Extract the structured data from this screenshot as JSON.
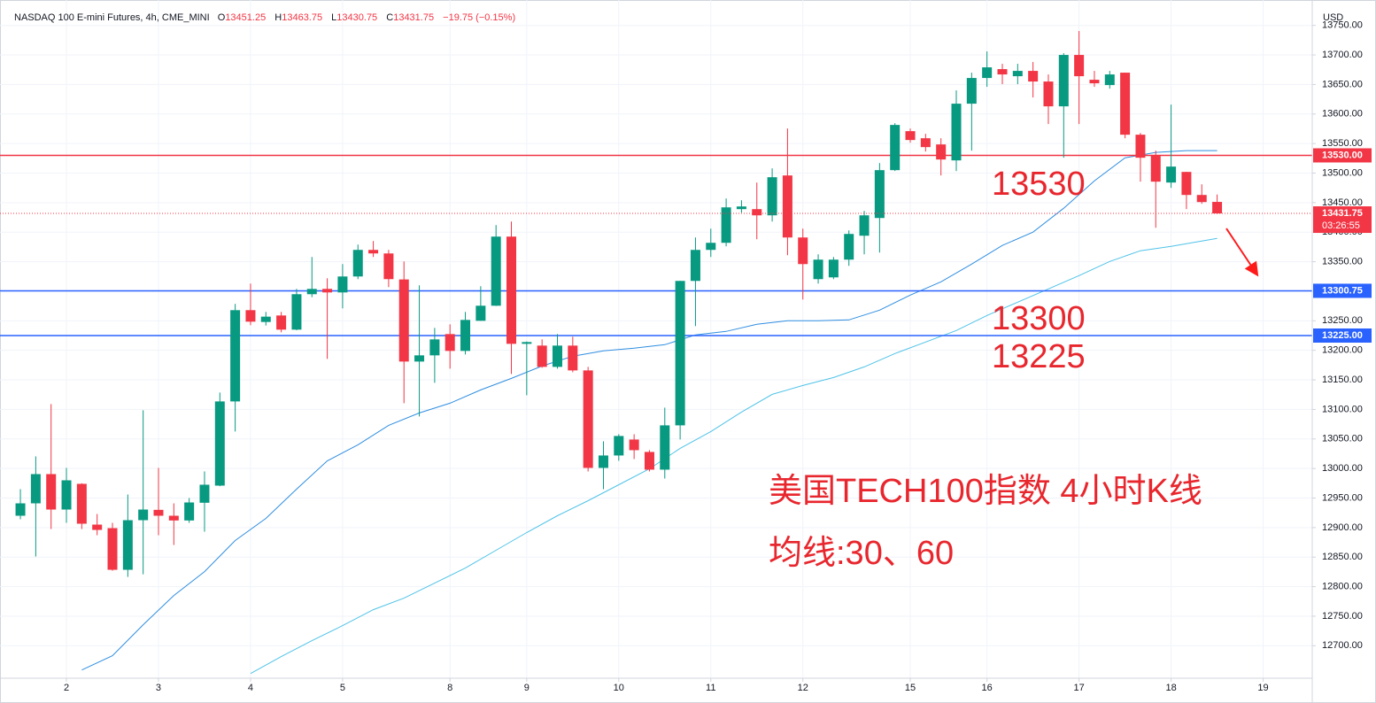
{
  "chart_data": {
    "type": "candlestick",
    "header": {
      "symbol": "NASDAQ 100 E-mini Futures, 4h, CME_MINI",
      "fields": [
        {
          "key": "O",
          "value": 13451.25
        },
        {
          "key": "H",
          "value": 13463.75
        },
        {
          "key": "L",
          "value": 13430.75
        },
        {
          "key": "C",
          "value": 13431.75
        }
      ],
      "change": "−19.75 (−0.15%)"
    },
    "currency": "USD",
    "up_color": "#089981",
    "down_color": "#f23645",
    "grid": true,
    "xlim": [
      -1.33,
      84.2
    ],
    "xticks": [
      {
        "value": 3,
        "label": "2"
      },
      {
        "value": 9,
        "label": "3"
      },
      {
        "value": 15,
        "label": "4"
      },
      {
        "value": 21,
        "label": "5"
      },
      {
        "value": 28,
        "label": "8"
      },
      {
        "value": 33,
        "label": "9"
      },
      {
        "value": 39,
        "label": "10"
      },
      {
        "value": 45,
        "label": "11"
      },
      {
        "value": 51,
        "label": "12"
      },
      {
        "value": 58,
        "label": "15"
      },
      {
        "value": 63,
        "label": "16"
      },
      {
        "value": 69,
        "label": "17"
      },
      {
        "value": 75,
        "label": "18"
      },
      {
        "value": 81,
        "label": "19"
      }
    ],
    "ylim": [
      12645,
      13793
    ],
    "yticks": [
      {
        "value": 12700,
        "label": "12700.00"
      },
      {
        "value": 12750,
        "label": "12750.00"
      },
      {
        "value": 12800,
        "label": "12800.00"
      },
      {
        "value": 12850,
        "label": "12850.00"
      },
      {
        "value": 12900,
        "label": "12900.00"
      },
      {
        "value": 12950,
        "label": "12950.00"
      },
      {
        "value": 13000,
        "label": "13000.00"
      },
      {
        "value": 13050,
        "label": "13050.00"
      },
      {
        "value": 13100,
        "label": "13100.00"
      },
      {
        "value": 13150,
        "label": "13150.00"
      },
      {
        "value": 13200,
        "label": "13200.00"
      },
      {
        "value": 13250,
        "label": "13250.00"
      },
      {
        "value": 13300,
        "label": "13300.00"
      },
      {
        "value": 13350,
        "label": "13350.00"
      },
      {
        "value": 13400,
        "label": "13400.00"
      },
      {
        "value": 13450,
        "label": "13450.00"
      },
      {
        "value": 13500,
        "label": "13500.00"
      },
      {
        "value": 13550,
        "label": "13550.00"
      },
      {
        "value": 13600,
        "label": "13600.00"
      },
      {
        "value": 13650,
        "label": "13650.00"
      },
      {
        "value": 13700,
        "label": "13700.00"
      },
      {
        "value": 13750,
        "label": "13750.00"
      }
    ],
    "candles": {
      "open": [
        12920,
        12941,
        12990.5,
        12930.5,
        12974,
        12905,
        12899,
        12828.5,
        12912.5,
        12930,
        12920,
        12912,
        12942,
        12971,
        13113.5,
        13268,
        13248,
        13259,
        13235,
        13295,
        13304,
        13298,
        13325,
        13370,
        13364,
        13320,
        13181,
        13191.5,
        13227.5,
        13199,
        13250,
        13275.5,
        13392.5,
        13211,
        13208,
        13172,
        13208,
        13166,
        13001,
        13022,
        13049,
        13028,
        12998,
        13073,
        13317.5,
        13370,
        13382,
        13439,
        13439,
        13428.5,
        13496,
        13391,
        13320.5,
        13323.5,
        13353.5,
        13394,
        13424,
        13505,
        13571,
        13559,
        13548.5,
        13521.5,
        13617.5,
        13661,
        13676,
        13664,
        13673,
        13655,
        13613,
        13700,
        13658,
        13649,
        13670,
        13565,
        13530.5,
        13484,
        13502,
        13463,
        13451.25
      ],
      "high": [
        12965,
        13020.5,
        13109,
        13001,
        12975,
        12923,
        12908,
        12956,
        13098.5,
        13001,
        12941,
        12950,
        12995,
        13128.5,
        13278.5,
        13313,
        13265,
        13265,
        13304,
        13358,
        13322,
        13346,
        13379,
        13385,
        13370,
        13350.5,
        13310,
        13238,
        13244,
        13265,
        13308.5,
        13412,
        13418,
        13215,
        13218.5,
        13227.5,
        13223,
        13172,
        13046,
        13058,
        13058,
        13031,
        13103,
        13317.5,
        13391,
        13406,
        13457,
        13454,
        13484,
        13508,
        13575.5,
        13406,
        13362.5,
        13358,
        13403,
        13436,
        13517,
        13584.5,
        13575.5,
        13566.5,
        13559,
        13640,
        13670,
        13706,
        13685,
        13685,
        13688,
        13667,
        13703,
        13740.5,
        13673,
        13673,
        13670,
        13568,
        13538,
        13616,
        13502,
        13481,
        13463.75
      ],
      "low": [
        12914,
        12851,
        12897.5,
        12908,
        12897.5,
        12887,
        12827,
        12816.5,
        12821,
        12887,
        12870.5,
        12908,
        12893,
        12970,
        13062.5,
        13242.5,
        13242,
        13230.5,
        13234,
        13290,
        13185.5,
        13271,
        13320.5,
        13358,
        13307,
        13110.5,
        13088,
        13145,
        13169,
        13193,
        13250,
        13275,
        13160,
        13124,
        13170.5,
        13169,
        13163,
        12995,
        12965,
        13013,
        13016,
        12995,
        12983,
        13049,
        13241,
        13358,
        13376,
        13433,
        13388,
        13418,
        13361,
        13286,
        13313,
        13320.5,
        13343,
        13362.5,
        13365.5,
        13503.5,
        13551.5,
        13536.5,
        13496,
        13503.5,
        13538,
        13646,
        13650.5,
        13650.5,
        13628,
        13583,
        13526,
        13583,
        13646,
        13643,
        13559,
        13485.5,
        13407.5,
        13475,
        13439,
        13448,
        13430.75
      ],
      "close": [
        12941,
        12990.5,
        12930.5,
        12980,
        12906.5,
        12896,
        12828.5,
        12912.5,
        12930.5,
        12920,
        12912,
        12942.5,
        12972.5,
        13113.5,
        13268,
        13248.5,
        13257,
        13235,
        13295,
        13304,
        13298,
        13325,
        13370,
        13364,
        13320.5,
        13181,
        13191.5,
        13218.5,
        13199,
        13251.5,
        13275.5,
        13392.5,
        13211,
        13214,
        13172,
        13208,
        13166,
        13001,
        13022,
        13055,
        13031,
        12998,
        13073,
        13317.5,
        13370,
        13382,
        13442,
        13443.5,
        13428.5,
        13493,
        13391,
        13346,
        13353.5,
        13353.5,
        13397,
        13428.5,
        13505,
        13581.5,
        13556,
        13544,
        13523,
        13617.5,
        13661,
        13679,
        13667,
        13673,
        13655,
        13613,
        13700,
        13664,
        13652,
        13667,
        13565,
        13526,
        13485.5,
        13511,
        13463,
        13451,
        13431.75
      ]
    },
    "moving_averages": [
      {
        "color": "#2f8ee0",
        "x": [
          4,
          6,
          8,
          10,
          12,
          14,
          16,
          18,
          20,
          22,
          24,
          26,
          28,
          30,
          32,
          34,
          36,
          38,
          40,
          42,
          44,
          46,
          48,
          50,
          52,
          54,
          56,
          58,
          60,
          62,
          64,
          66,
          68,
          70,
          72,
          74,
          76,
          78
        ],
        "values": [
          12659,
          12683,
          12735.5,
          12785,
          12825.5,
          12878,
          12915.5,
          12965,
          13013,
          13040,
          13073,
          13094,
          13110.5,
          13133,
          13152.5,
          13173.5,
          13190,
          13199,
          13203.5,
          13209.5,
          13226,
          13232,
          13244,
          13250,
          13250,
          13251.5,
          13268,
          13293.5,
          13316,
          13346,
          13377.5,
          13400,
          13440.5,
          13487,
          13526,
          13535,
          13538,
          13538
        ]
      },
      {
        "color": "#4fc3e8",
        "x": [
          15,
          17,
          19,
          21,
          23,
          25,
          27,
          29,
          31,
          33,
          35,
          37,
          39,
          41,
          43,
          45,
          47,
          49,
          51,
          53,
          55,
          57,
          59,
          61,
          63,
          65,
          67,
          69,
          71,
          73,
          75,
          77,
          78
        ],
        "values": [
          12653,
          12681.5,
          12708.5,
          12734,
          12761,
          12780.5,
          12806,
          12831.5,
          12861.5,
          12891.5,
          12920,
          12945.5,
          12972.5,
          12999.5,
          13034,
          13062.5,
          13095.5,
          13125.5,
          13140.5,
          13154,
          13172,
          13194.5,
          13214,
          13233.5,
          13259,
          13281.5,
          13304,
          13326.5,
          13350.5,
          13368.5,
          13376,
          13385,
          13389.5
        ]
      }
    ],
    "levels": [
      {
        "value": 13530,
        "label": "13530.00",
        "color": "#f23645"
      },
      {
        "value": 13300.75,
        "label": "13300.75",
        "color": "#2962ff"
      },
      {
        "value": 13225,
        "label": "13225.00",
        "color": "#2962ff"
      }
    ],
    "last_price": {
      "value": 13431.75,
      "countdown": "03:26:55",
      "color": "#f23645"
    },
    "annotations": [
      "13530",
      "13300",
      "13225",
      "美国TECH100指数 4小时K线",
      "均线:30、60"
    ],
    "annotation_color": "#e8262d"
  }
}
